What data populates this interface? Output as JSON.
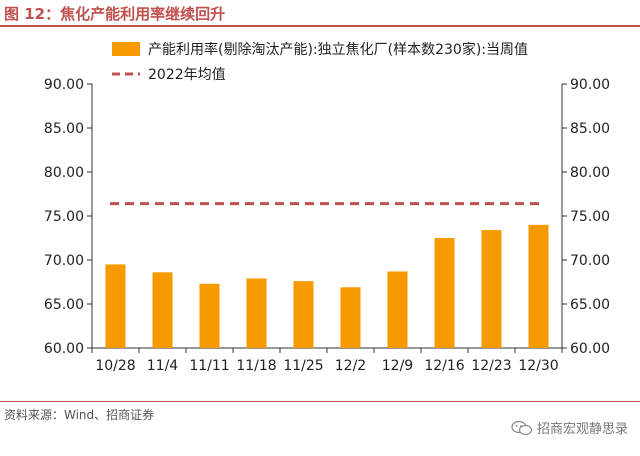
{
  "figure": {
    "title": "图 12：焦化产能利用率继续回升",
    "source": "资料来源：Wind、招商证券",
    "watermark": "招商宏观静思录",
    "watermark_icon": "wechat-icon"
  },
  "colors": {
    "accent": "#c0504d",
    "bar": "#f79a00",
    "avg_line": "#c0504d"
  },
  "chart_data": {
    "type": "bar",
    "categories": [
      "10/28",
      "11/4",
      "11/11",
      "11/18",
      "11/25",
      "12/2",
      "12/9",
      "12/16",
      "12/23",
      "12/30"
    ],
    "series": [
      {
        "name": "产能利用率(剔除淘汰产能):独立焦化厂(样本数230家):当周值",
        "kind": "bar",
        "values": [
          69.5,
          68.6,
          67.3,
          67.9,
          67.6,
          66.9,
          68.7,
          72.5,
          73.4,
          74.0
        ]
      },
      {
        "name": "2022年均值",
        "kind": "dashed-line",
        "value": 76.4
      }
    ],
    "ylim": [
      60,
      90
    ],
    "yticks": [
      "60.00",
      "65.00",
      "70.00",
      "75.00",
      "80.00",
      "85.00",
      "90.00"
    ],
    "ytick_values": [
      60,
      65,
      70,
      75,
      80,
      85,
      90
    ],
    "dual_axis": true,
    "grid": false,
    "legend_position": "top"
  }
}
